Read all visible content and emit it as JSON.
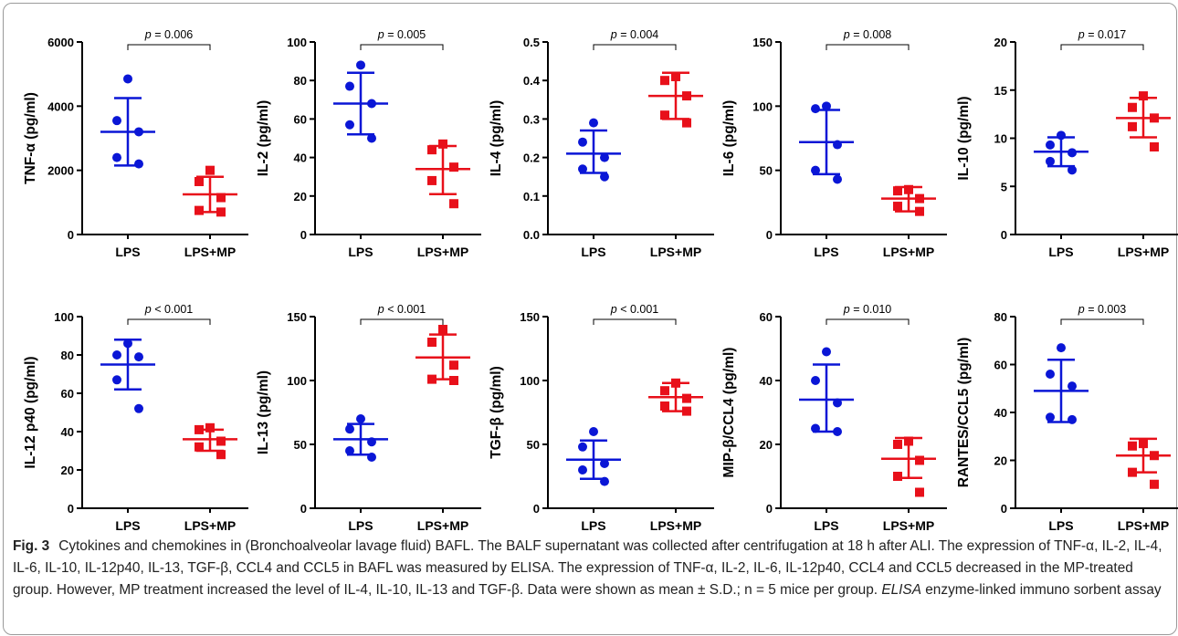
{
  "colors": {
    "LPS": "#0a16d6",
    "LPS+MP": "#e8101a"
  },
  "chart_data": [
    {
      "type": "scatter",
      "ylabel": "TNF-α (pg/ml)",
      "ylim": [
        0,
        6000
      ],
      "yticks": [
        "0",
        "2000",
        "4000",
        "6000"
      ],
      "categories": [
        "LPS",
        "LPS+MP"
      ],
      "pvalue": "= 0.006",
      "series": [
        {
          "name": "LPS",
          "values": [
            4850,
            3550,
            3200,
            2400,
            2200
          ],
          "mean": 3200,
          "sd_low": 2150,
          "sd_high": 4250
        },
        {
          "name": "LPS+MP",
          "values": [
            2000,
            1650,
            1150,
            750,
            700
          ],
          "mean": 1250,
          "sd_low": 700,
          "sd_high": 1800
        }
      ]
    },
    {
      "type": "scatter",
      "ylabel": "IL-2 (pg/ml)",
      "ylim": [
        0,
        100
      ],
      "yticks": [
        "0",
        "20",
        "40",
        "60",
        "80",
        "100"
      ],
      "categories": [
        "LPS",
        "LPS+MP"
      ],
      "pvalue": "= 0.005",
      "series": [
        {
          "name": "LPS",
          "values": [
            88,
            77,
            68,
            57,
            50
          ],
          "mean": 68,
          "sd_low": 52,
          "sd_high": 84
        },
        {
          "name": "LPS+MP",
          "values": [
            47,
            44,
            35,
            28,
            16
          ],
          "mean": 34,
          "sd_low": 21,
          "sd_high": 46
        }
      ]
    },
    {
      "type": "scatter",
      "ylabel": "IL-4 (pg/ml)",
      "ylim": [
        0,
        0.5
      ],
      "yticks": [
        "0.0",
        "0.1",
        "0.2",
        "0.3",
        "0.4",
        "0.5"
      ],
      "categories": [
        "LPS",
        "LPS+MP"
      ],
      "pvalue": "= 0.004",
      "series": [
        {
          "name": "LPS",
          "values": [
            0.29,
            0.24,
            0.2,
            0.17,
            0.15
          ],
          "mean": 0.21,
          "sd_low": 0.16,
          "sd_high": 0.27
        },
        {
          "name": "LPS+MP",
          "values": [
            0.41,
            0.4,
            0.36,
            0.31,
            0.29
          ],
          "mean": 0.36,
          "sd_low": 0.3,
          "sd_high": 0.42
        }
      ]
    },
    {
      "type": "scatter",
      "ylabel": "IL-6 (pg/ml)",
      "ylim": [
        0,
        150
      ],
      "yticks": [
        "0",
        "50",
        "100",
        "150"
      ],
      "categories": [
        "LPS",
        "LPS+MP"
      ],
      "pvalue": "= 0.008",
      "series": [
        {
          "name": "LPS",
          "values": [
            100,
            98,
            70,
            50,
            43
          ],
          "mean": 72,
          "sd_low": 47,
          "sd_high": 97
        },
        {
          "name": "LPS+MP",
          "values": [
            35,
            34,
            28,
            22,
            18
          ],
          "mean": 28,
          "sd_low": 18,
          "sd_high": 37
        }
      ]
    },
    {
      "type": "scatter",
      "ylabel": "IL-10 (pg/ml)",
      "ylim": [
        0,
        20
      ],
      "yticks": [
        "0",
        "5",
        "10",
        "15",
        "20"
      ],
      "categories": [
        "LPS",
        "LPS+MP"
      ],
      "pvalue": "= 0.017",
      "series": [
        {
          "name": "LPS",
          "values": [
            10.3,
            9.3,
            8.5,
            7.6,
            6.7
          ],
          "mean": 8.6,
          "sd_low": 7.1,
          "sd_high": 10.1
        },
        {
          "name": "LPS+MP",
          "values": [
            14.4,
            13.2,
            12.1,
            11.2,
            9.1
          ],
          "mean": 12.1,
          "sd_low": 10.1,
          "sd_high": 14.2
        }
      ]
    },
    {
      "type": "scatter",
      "ylabel": "IL-12 p40 (pg/ml)",
      "ylim": [
        0,
        100
      ],
      "yticks": [
        "0",
        "20",
        "40",
        "60",
        "80",
        "100"
      ],
      "categories": [
        "LPS",
        "LPS+MP"
      ],
      "pvalue": "< 0.001",
      "series": [
        {
          "name": "LPS",
          "values": [
            86,
            80,
            79,
            67,
            52
          ],
          "mean": 75,
          "sd_low": 62,
          "sd_high": 88
        },
        {
          "name": "LPS+MP",
          "values": [
            42,
            41,
            35,
            32,
            28
          ],
          "mean": 36,
          "sd_low": 30,
          "sd_high": 41
        }
      ]
    },
    {
      "type": "scatter",
      "ylabel": "IL-13 (pg/ml)",
      "ylim": [
        0,
        150
      ],
      "yticks": [
        "0",
        "50",
        "100",
        "150"
      ],
      "categories": [
        "LPS",
        "LPS+MP"
      ],
      "pvalue": "< 0.001",
      "series": [
        {
          "name": "LPS",
          "values": [
            70,
            62,
            52,
            45,
            40
          ],
          "mean": 54,
          "sd_low": 42,
          "sd_high": 66
        },
        {
          "name": "LPS+MP",
          "values": [
            140,
            130,
            112,
            101,
            100
          ],
          "mean": 118,
          "sd_low": 101,
          "sd_high": 136
        }
      ]
    },
    {
      "type": "scatter",
      "ylabel": "TGF-β (pg/ml)",
      "ylim": [
        0,
        150
      ],
      "yticks": [
        "0",
        "50",
        "100",
        "150"
      ],
      "categories": [
        "LPS",
        "LPS+MP"
      ],
      "pvalue": "< 0.001",
      "series": [
        {
          "name": "LPS",
          "values": [
            60,
            48,
            35,
            30,
            21
          ],
          "mean": 38,
          "sd_low": 23,
          "sd_high": 53
        },
        {
          "name": "LPS+MP",
          "values": [
            98,
            92,
            86,
            80,
            76
          ],
          "mean": 87,
          "sd_low": 76,
          "sd_high": 98
        }
      ]
    },
    {
      "type": "scatter",
      "ylabel": "MIP-β/CCL4 (pg/ml)",
      "ylim": [
        0,
        60
      ],
      "yticks": [
        "0",
        "20",
        "40",
        "60"
      ],
      "categories": [
        "LPS",
        "LPS+MP"
      ],
      "pvalue": "= 0.010",
      "series": [
        {
          "name": "LPS",
          "values": [
            49,
            40,
            33,
            25,
            24
          ],
          "mean": 34,
          "sd_low": 24,
          "sd_high": 45
        },
        {
          "name": "LPS+MP",
          "values": [
            21,
            20,
            15,
            10,
            5
          ],
          "mean": 15.5,
          "sd_low": 9.5,
          "sd_high": 22
        }
      ]
    },
    {
      "type": "scatter",
      "ylabel": "RANTES/CCL5 (pg/ml)",
      "ylim": [
        0,
        80
      ],
      "yticks": [
        "0",
        "20",
        "40",
        "60",
        "80"
      ],
      "categories": [
        "LPS",
        "LPS+MP"
      ],
      "pvalue": "= 0.003",
      "series": [
        {
          "name": "LPS",
          "values": [
            67,
            56,
            51,
            38,
            37
          ],
          "mean": 49,
          "sd_low": 36,
          "sd_high": 62
        },
        {
          "name": "LPS+MP",
          "values": [
            27,
            26,
            22,
            15,
            10
          ],
          "mean": 22,
          "sd_low": 15,
          "sd_high": 29
        }
      ]
    }
  ],
  "caption": {
    "label": "Fig. 3",
    "text": "Cytokines and chemokines in (Bronchoalveolar lavage fluid) BAFL. The BALF supernatant was collected after centrifugation at 18 h after ALI. The expression of TNF-α, IL-2, IL-4, IL-6, IL-10, IL-12p40, IL-13, TGF-β, CCL4 and CCL5 in BAFL was measured by ELISA. The expression of TNF-α, IL-2, IL-6, IL-12p40, CCL4 and CCL5 decreased in the MP-treated group. However, MP treatment increased the level of IL-4, IL-10, IL-13 and TGF-β. Data were shown as mean ± S.D.; n = 5 mice per group.",
    "abbrev": "ELISA",
    "abbrev_def": "enzyme-linked immuno sorbent assay"
  }
}
